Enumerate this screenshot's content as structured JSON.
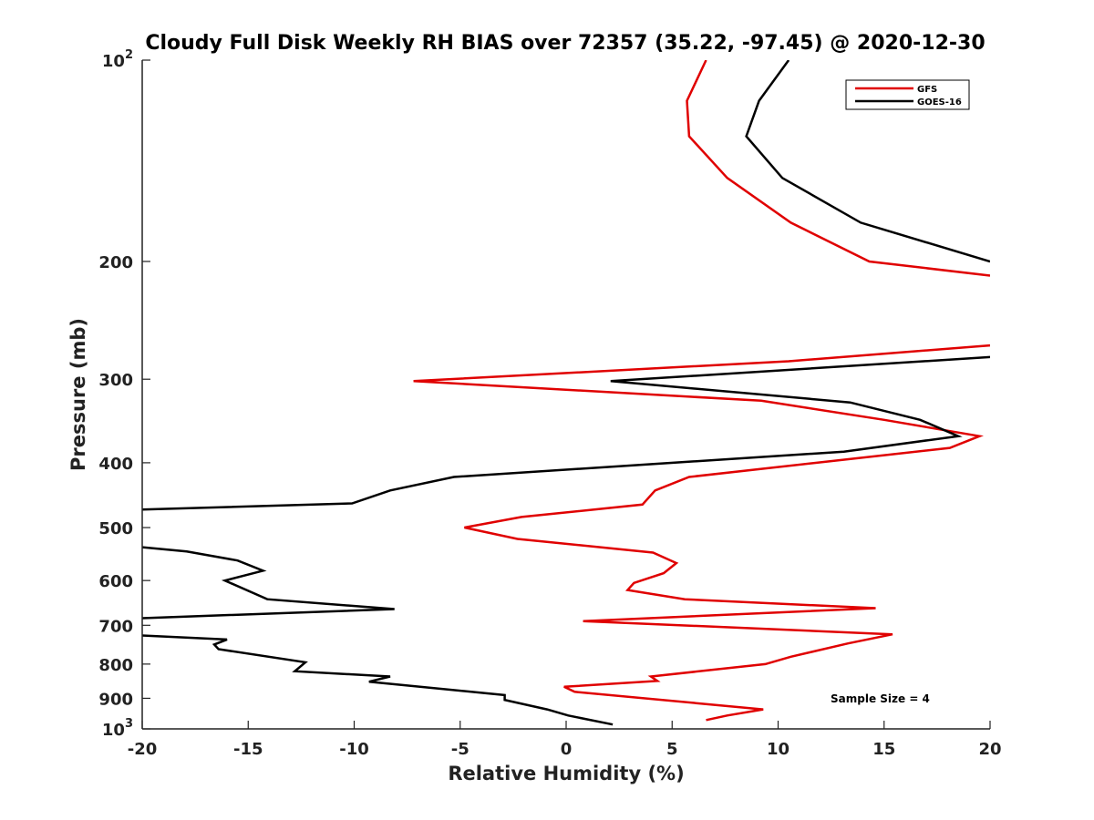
{
  "chart_data": {
    "type": "line",
    "title": "Cloudy Full Disk Weekly RH BIAS over 72357 (35.22, -97.45) @ 2020-12-30",
    "xlabel": "Relative Humidity (%)",
    "ylabel": "Pressure (mb)",
    "xlim": [
      -20,
      20
    ],
    "ylim": [
      1000,
      100
    ],
    "y_scale": "log",
    "x_ticks": [
      {
        "value": -20,
        "label": "-20"
      },
      {
        "value": -15,
        "label": "-15"
      },
      {
        "value": -10,
        "label": "-10"
      },
      {
        "value": -5,
        "label": "-5"
      },
      {
        "value": 0,
        "label": "0"
      },
      {
        "value": 5,
        "label": "5"
      },
      {
        "value": 10,
        "label": "10"
      },
      {
        "value": 15,
        "label": "15"
      },
      {
        "value": 20,
        "label": "20"
      }
    ],
    "y_ticks": [
      {
        "value": 100,
        "base": "10",
        "exp": "2"
      },
      {
        "value": 200,
        "label": "200"
      },
      {
        "value": 300,
        "label": "300"
      },
      {
        "value": 400,
        "label": "400"
      },
      {
        "value": 500,
        "label": "500"
      },
      {
        "value": 600,
        "label": "600"
      },
      {
        "value": 700,
        "label": "700"
      },
      {
        "value": 800,
        "label": "800"
      },
      {
        "value": 900,
        "label": "900"
      },
      {
        "value": 1000,
        "base": "10",
        "exp": "3"
      }
    ],
    "grid": false,
    "legend": {
      "position": "top-right",
      "entries": [
        "GFS",
        "GOES-16"
      ]
    },
    "annotation": "Sample Size = 4",
    "series": [
      {
        "name": "GFS",
        "color": "#e00000",
        "points": [
          [
            6.6,
            100
          ],
          [
            5.7,
            115
          ],
          [
            5.8,
            130
          ],
          [
            7.6,
            150
          ],
          [
            10.6,
            175
          ],
          [
            14.3,
            200
          ],
          [
            20,
            210
          ],
          [
            null,
            null
          ],
          [
            20,
            267
          ],
          [
            10.5,
            282
          ],
          [
            -7.2,
            302
          ],
          [
            9.2,
            323
          ],
          [
            15.0,
            345
          ],
          [
            19.5,
            365
          ],
          [
            18.1,
            380
          ],
          [
            5.8,
            420
          ],
          [
            4.2,
            440
          ],
          [
            3.6,
            462
          ],
          [
            -2.1,
            482
          ],
          [
            -4.8,
            500
          ],
          [
            -2.3,
            520
          ],
          [
            4.1,
            545
          ],
          [
            5.2,
            565
          ],
          [
            4.6,
            585
          ],
          [
            3.2,
            605
          ],
          [
            2.9,
            620
          ],
          [
            5.6,
            640
          ],
          [
            14.6,
            660
          ],
          [
            0.8,
            690
          ],
          [
            15.4,
            722
          ],
          [
            13.3,
            745
          ],
          [
            10.6,
            780
          ],
          [
            9.4,
            800
          ],
          [
            4.0,
            835
          ],
          [
            4.3,
            848
          ],
          [
            -0.1,
            865
          ],
          [
            0.4,
            880
          ],
          [
            9.3,
            935
          ],
          [
            7.6,
            955
          ],
          [
            6.6,
            970
          ]
        ]
      },
      {
        "name": "GOES-16",
        "color": "#000000",
        "points": [
          [
            10.5,
            100
          ],
          [
            9.1,
            115
          ],
          [
            8.5,
            130
          ],
          [
            10.2,
            150
          ],
          [
            13.9,
            175
          ],
          [
            20,
            200
          ],
          [
            null,
            null
          ],
          [
            20,
            278
          ],
          [
            2.1,
            302
          ],
          [
            13.4,
            325
          ],
          [
            16.7,
            345
          ],
          [
            18.5,
            365
          ],
          [
            13.1,
            385
          ],
          [
            -5.3,
            420
          ],
          [
            -8.3,
            440
          ],
          [
            -10.1,
            460
          ],
          [
            -20,
            470
          ],
          [
            null,
            null
          ],
          [
            -20,
            535
          ],
          [
            -17.9,
            543
          ],
          [
            -15.5,
            560
          ],
          [
            -14.3,
            580
          ],
          [
            -16.1,
            600
          ],
          [
            -14.1,
            640
          ],
          [
            -8.1,
            662
          ],
          [
            -20,
            683
          ],
          [
            null,
            null
          ],
          [
            -20,
            725
          ],
          [
            -16.0,
            735
          ],
          [
            -16.6,
            748
          ],
          [
            -16.4,
            760
          ],
          [
            -12.3,
            795
          ],
          [
            -12.8,
            820
          ],
          [
            -8.3,
            835
          ],
          [
            -9.3,
            850
          ],
          [
            -2.9,
            890
          ],
          [
            -2.9,
            905
          ],
          [
            -0.9,
            935
          ],
          [
            0.1,
            955
          ],
          [
            2.2,
            985
          ]
        ]
      }
    ]
  }
}
